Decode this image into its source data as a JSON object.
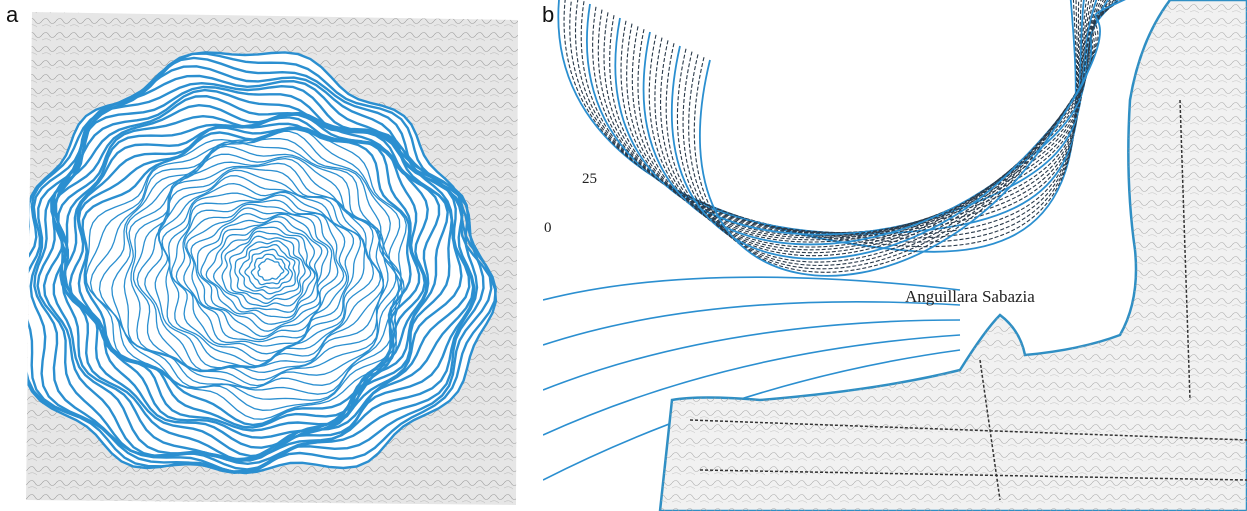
{
  "panels": [
    {
      "label": "a"
    },
    {
      "label": "b",
      "place_label": "Anguillara Sabazia",
      "contour_labels": [
        "25",
        "0"
      ]
    }
  ]
}
